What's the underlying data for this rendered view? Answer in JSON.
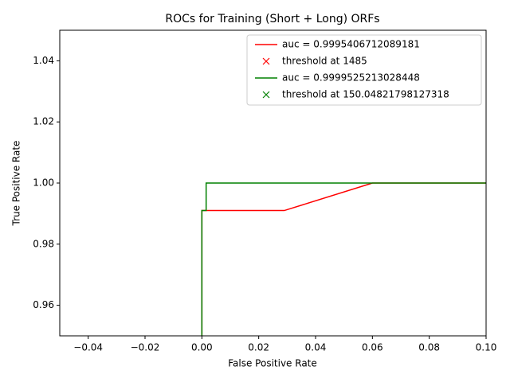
{
  "chart_data": {
    "type": "line",
    "title": "ROCs for Training (Short + Long) ORFs",
    "xlabel": "False Positive Rate",
    "ylabel": "True Positive Rate",
    "xlim": [
      -0.05,
      0.1
    ],
    "ylim": [
      0.95,
      1.05
    ],
    "xticks": [
      {
        "value": -0.04,
        "label": "−0.04"
      },
      {
        "value": -0.02,
        "label": "−0.02"
      },
      {
        "value": 0,
        "label": "0.00"
      },
      0.02,
      0.04,
      0.06,
      0.08,
      {
        "value": 0.1,
        "label": "0.10"
      }
    ],
    "yticks": [
      0.96,
      0.98,
      {
        "value": 1,
        "label": "1.00"
      },
      1.02,
      1.04
    ],
    "legend": "upper right",
    "series": [
      {
        "name": "auc = 0.9995406712089181",
        "color": "#ff0000",
        "x": [
          0,
          0,
          0.029,
          0.06,
          0.1
        ],
        "values": [
          0.95,
          0.991,
          0.991,
          1,
          1
        ]
      },
      {
        "name": "threshold at 1485",
        "color": "#ff0000",
        "marker": "x",
        "x": [],
        "values": []
      },
      {
        "name": "auc = 0.9999525213028448",
        "color": "#008000",
        "x": [
          0,
          0,
          0.0015,
          0.0015,
          0.1
        ],
        "values": [
          0.95,
          0.991,
          0.991,
          1,
          1
        ]
      },
      {
        "name": "threshold at 150.04821798127318",
        "color": "#008000",
        "marker": "x",
        "x": [],
        "values": []
      }
    ]
  }
}
